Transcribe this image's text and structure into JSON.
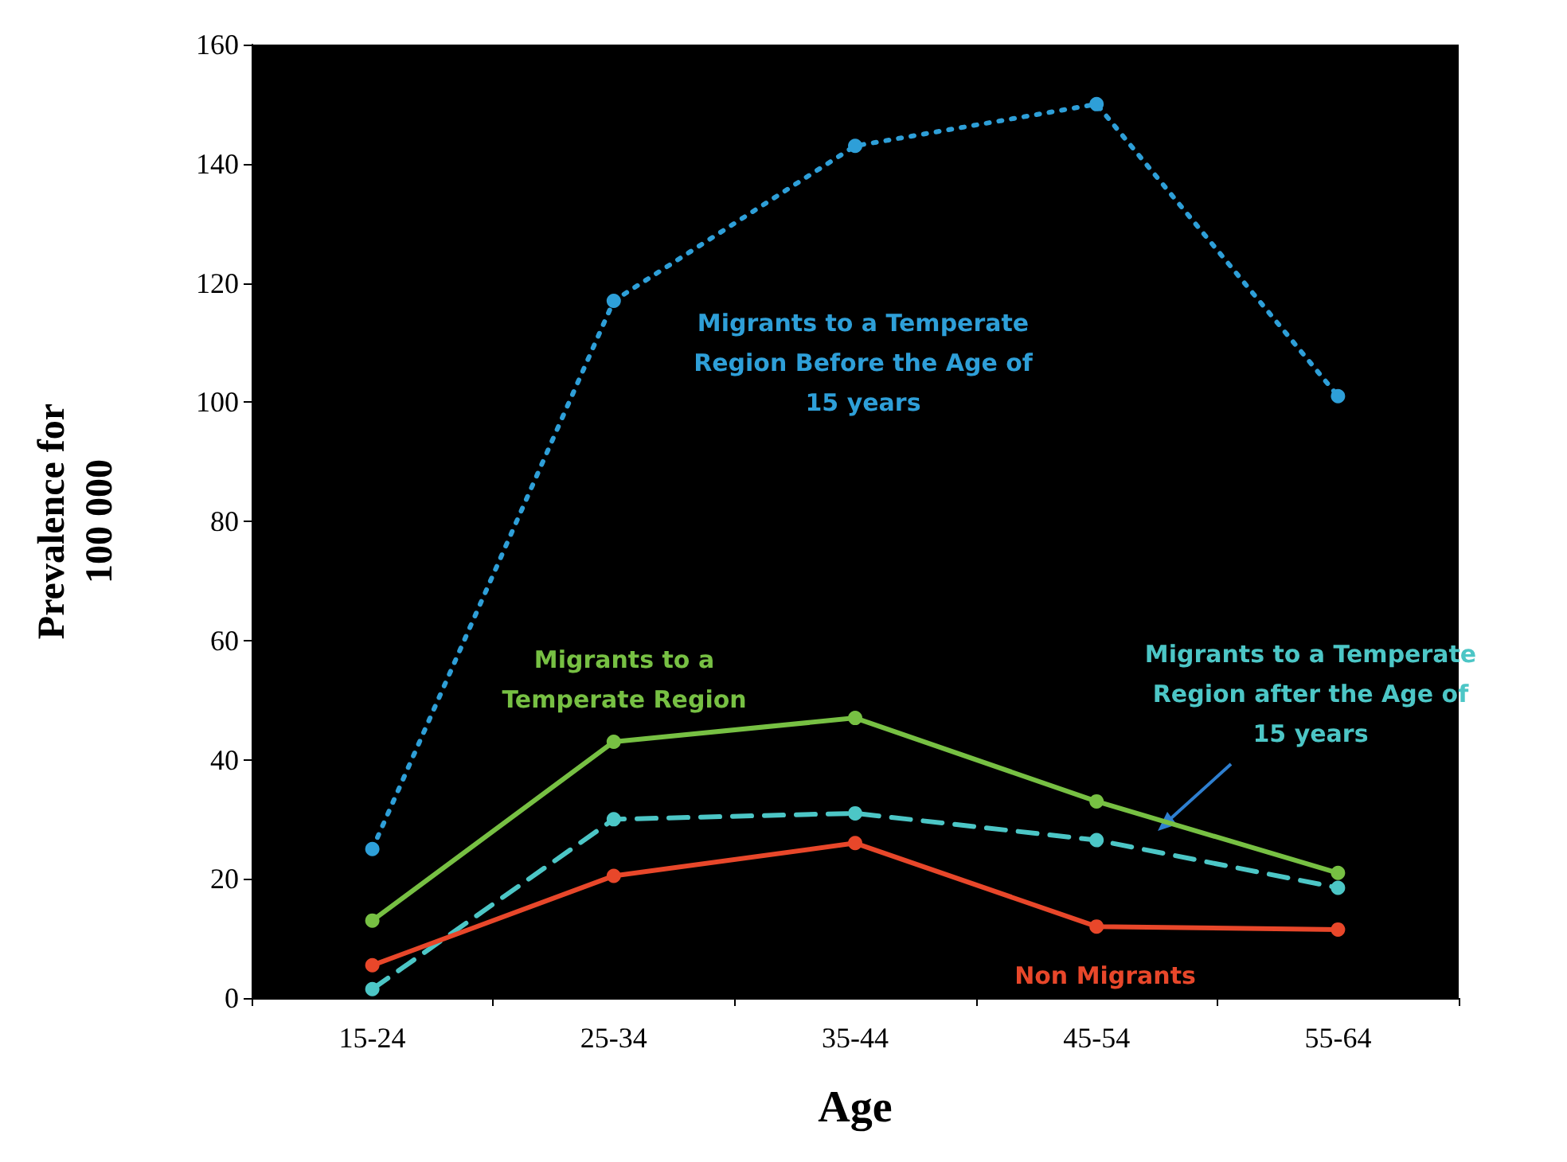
{
  "chart_data": {
    "type": "line",
    "xlabel": "Age",
    "ylabel": "Prevalence for\n100 000",
    "categories": [
      "15-24",
      "25-34",
      "35-44",
      "45-54",
      "55-64"
    ],
    "series": [
      {
        "color": "#2e9fd8",
        "line_style": "dotted",
        "values": [
          25,
          117,
          143,
          150,
          101
        ]
      },
      {
        "color": "#77c043",
        "line_style": "solid",
        "values": [
          13,
          43,
          47,
          33,
          21
        ]
      },
      {
        "color": "#4cc6c6",
        "line_style": "dashed",
        "values": [
          1.5,
          30,
          31,
          26.5,
          18.5
        ]
      },
      {
        "color": "#e8472a",
        "line_style": "solid",
        "values": [
          5.5,
          20.5,
          26,
          12,
          11.5
        ]
      }
    ],
    "annotations": [
      "Migrants to a Temperate\nRegion Before the Age of\n15 years",
      "Migrants to a\nTemperate Region",
      "Migrants to a Temperate\nRegion after the Age of\n15 years",
      "Non Migrants"
    ],
    "ylim": [
      0,
      160
    ],
    "yticks": [
      0,
      20,
      40,
      60,
      80,
      100,
      120,
      140,
      160
    ],
    "grid": false,
    "marker": "circle"
  }
}
